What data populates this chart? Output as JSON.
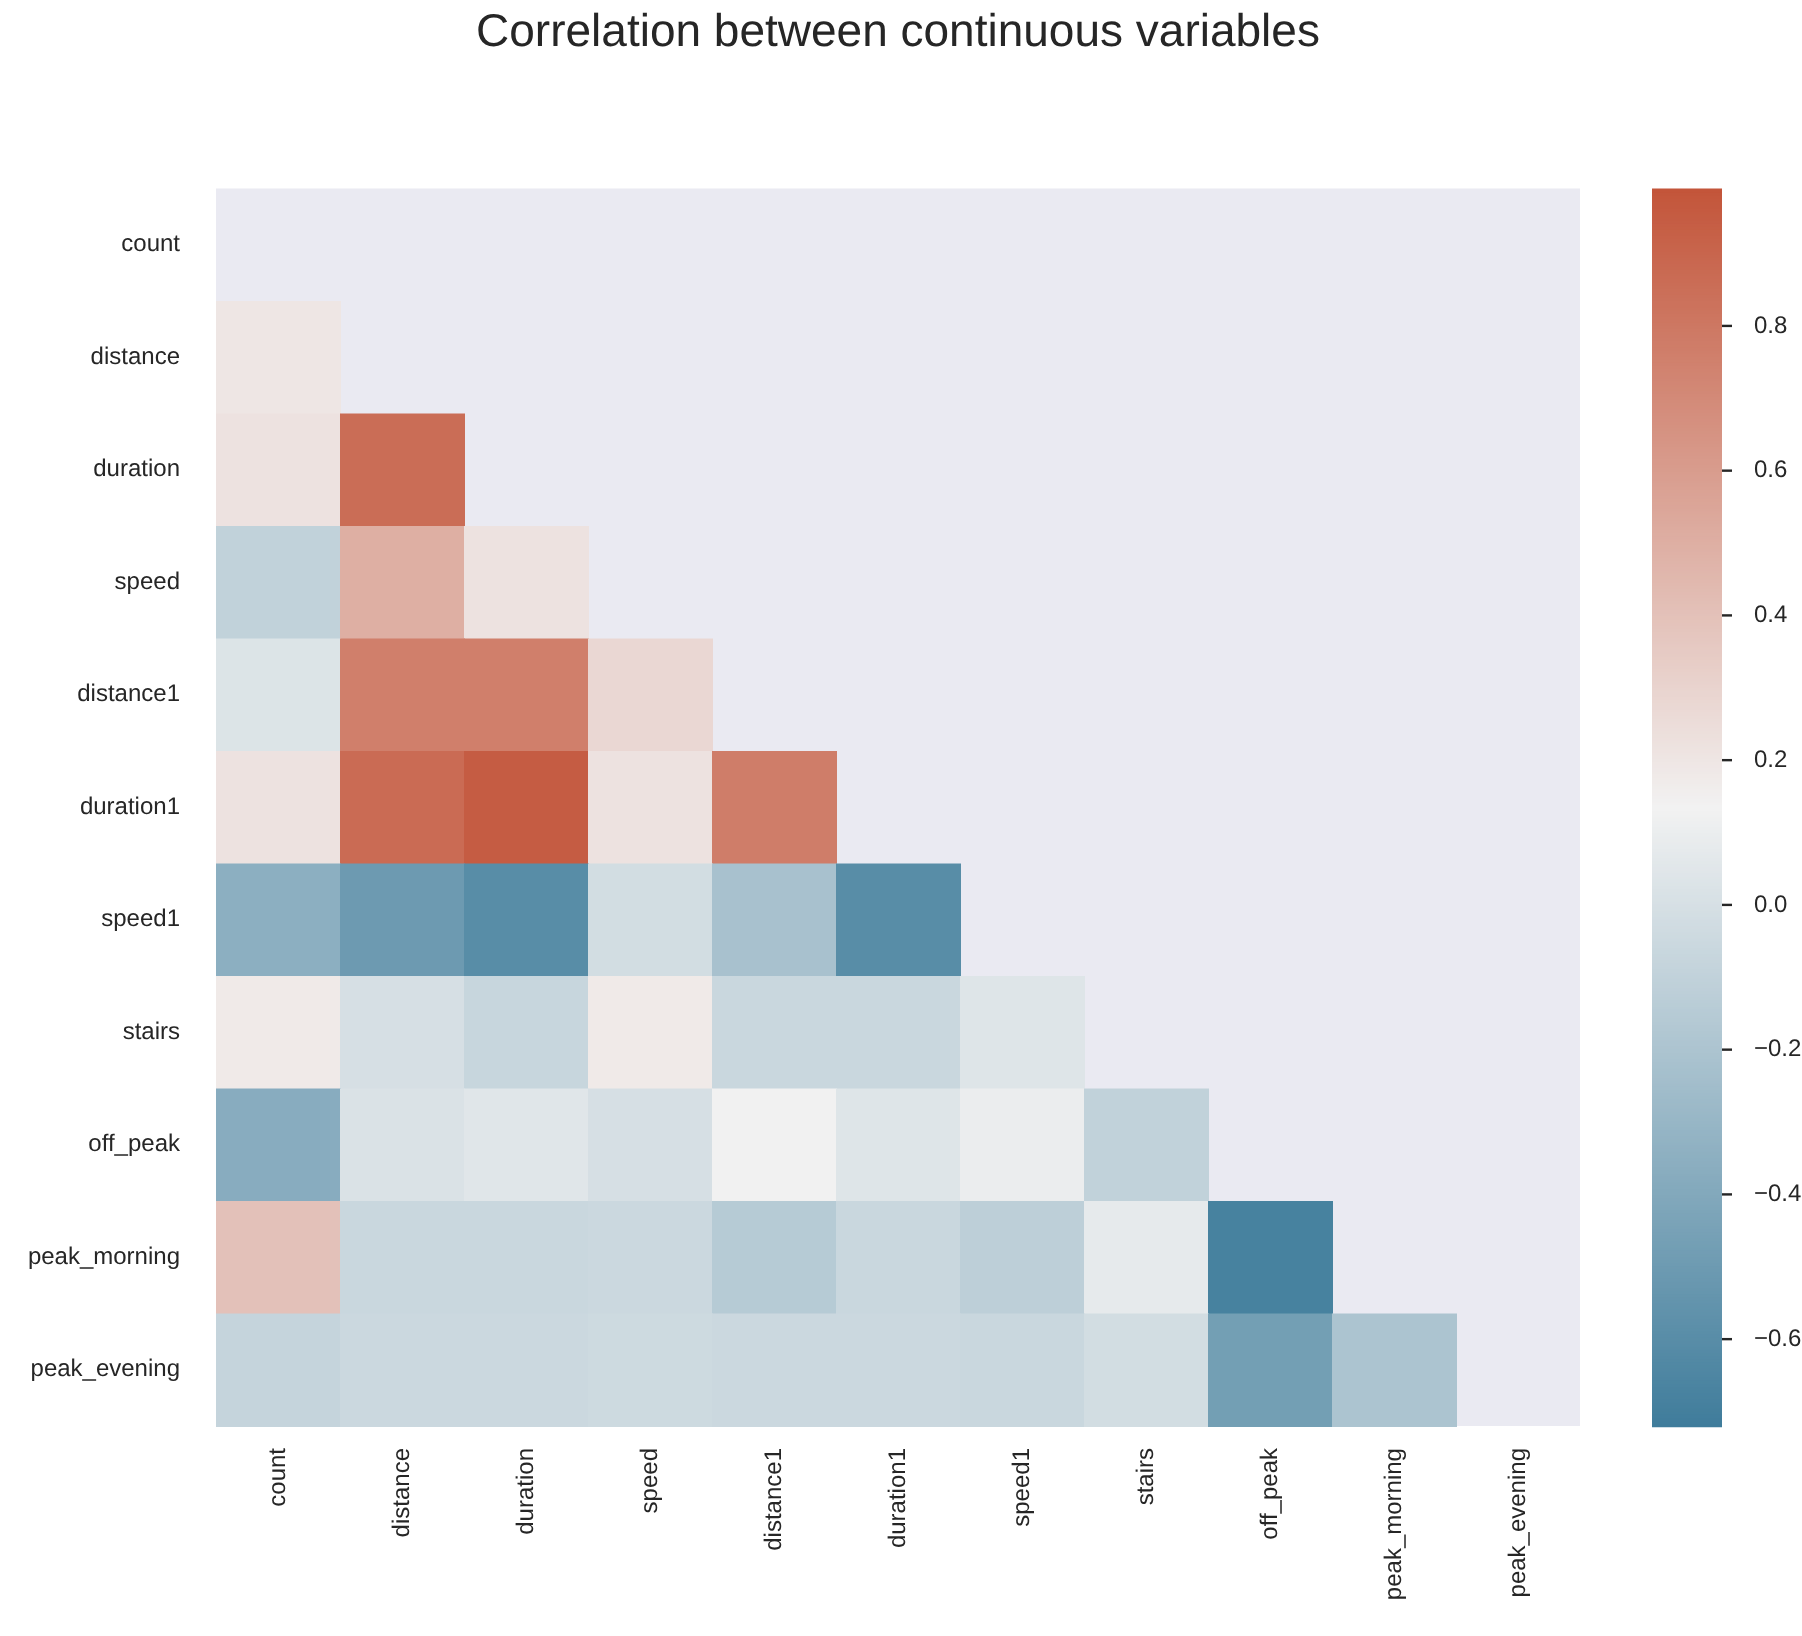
{
  "chart_data": {
    "type": "heatmap",
    "title": "Correlation between continuous variables",
    "categories": [
      "count",
      "distance",
      "duration",
      "speed",
      "distance1",
      "duration1",
      "speed1",
      "stairs",
      "off_peak",
      "peak_morning",
      "peak_evening"
    ],
    "y_categories": [
      "count",
      "distance",
      "duration",
      "speed",
      "distance1",
      "duration1",
      "speed1",
      "stairs",
      "off_peak",
      "peak_morning",
      "peak_evening"
    ],
    "cells": [
      [
        null,
        null,
        null,
        null,
        null,
        null,
        null,
        null,
        null,
        null,
        null
      ],
      [
        0.2,
        null,
        null,
        null,
        null,
        null,
        null,
        null,
        null,
        null,
        null
      ],
      [
        0.22,
        0.86,
        null,
        null,
        null,
        null,
        null,
        null,
        null,
        null,
        null
      ],
      [
        -0.1,
        0.5,
        0.22,
        null,
        null,
        null,
        null,
        null,
        null,
        null,
        null
      ],
      [
        0.03,
        0.76,
        0.76,
        0.28,
        null,
        null,
        null,
        null,
        null,
        null,
        null
      ],
      [
        0.22,
        0.87,
        0.95,
        0.22,
        0.77,
        null,
        null,
        null,
        null,
        null,
        null
      ],
      [
        -0.35,
        -0.5,
        -0.6,
        -0.02,
        -0.22,
        -0.6,
        null,
        null,
        null,
        null,
        null
      ],
      [
        0.18,
        0.0,
        -0.07,
        0.18,
        -0.06,
        -0.06,
        0.04,
        null,
        null,
        null,
        null
      ],
      [
        -0.37,
        0.02,
        0.05,
        0.0,
        0.13,
        0.04,
        0.1,
        -0.1,
        null,
        null,
        null
      ],
      [
        0.4,
        -0.06,
        -0.06,
        -0.05,
        -0.15,
        -0.06,
        -0.12,
        0.08,
        -0.68,
        null,
        null
      ],
      [
        -0.08,
        -0.05,
        -0.05,
        -0.04,
        -0.05,
        -0.05,
        -0.06,
        -0.02,
        -0.47,
        -0.2,
        null
      ]
    ],
    "clim": [
      -0.72,
      0.99
    ],
    "cticks": [
      {
        "value": -0.6,
        "label": "−0.6"
      },
      {
        "value": -0.4,
        "label": "−0.4"
      },
      {
        "value": -0.2,
        "label": "−0.2"
      },
      {
        "value": 0,
        "label": "0.0"
      },
      0.2,
      0.4,
      0.6,
      0.8
    ]
  }
}
